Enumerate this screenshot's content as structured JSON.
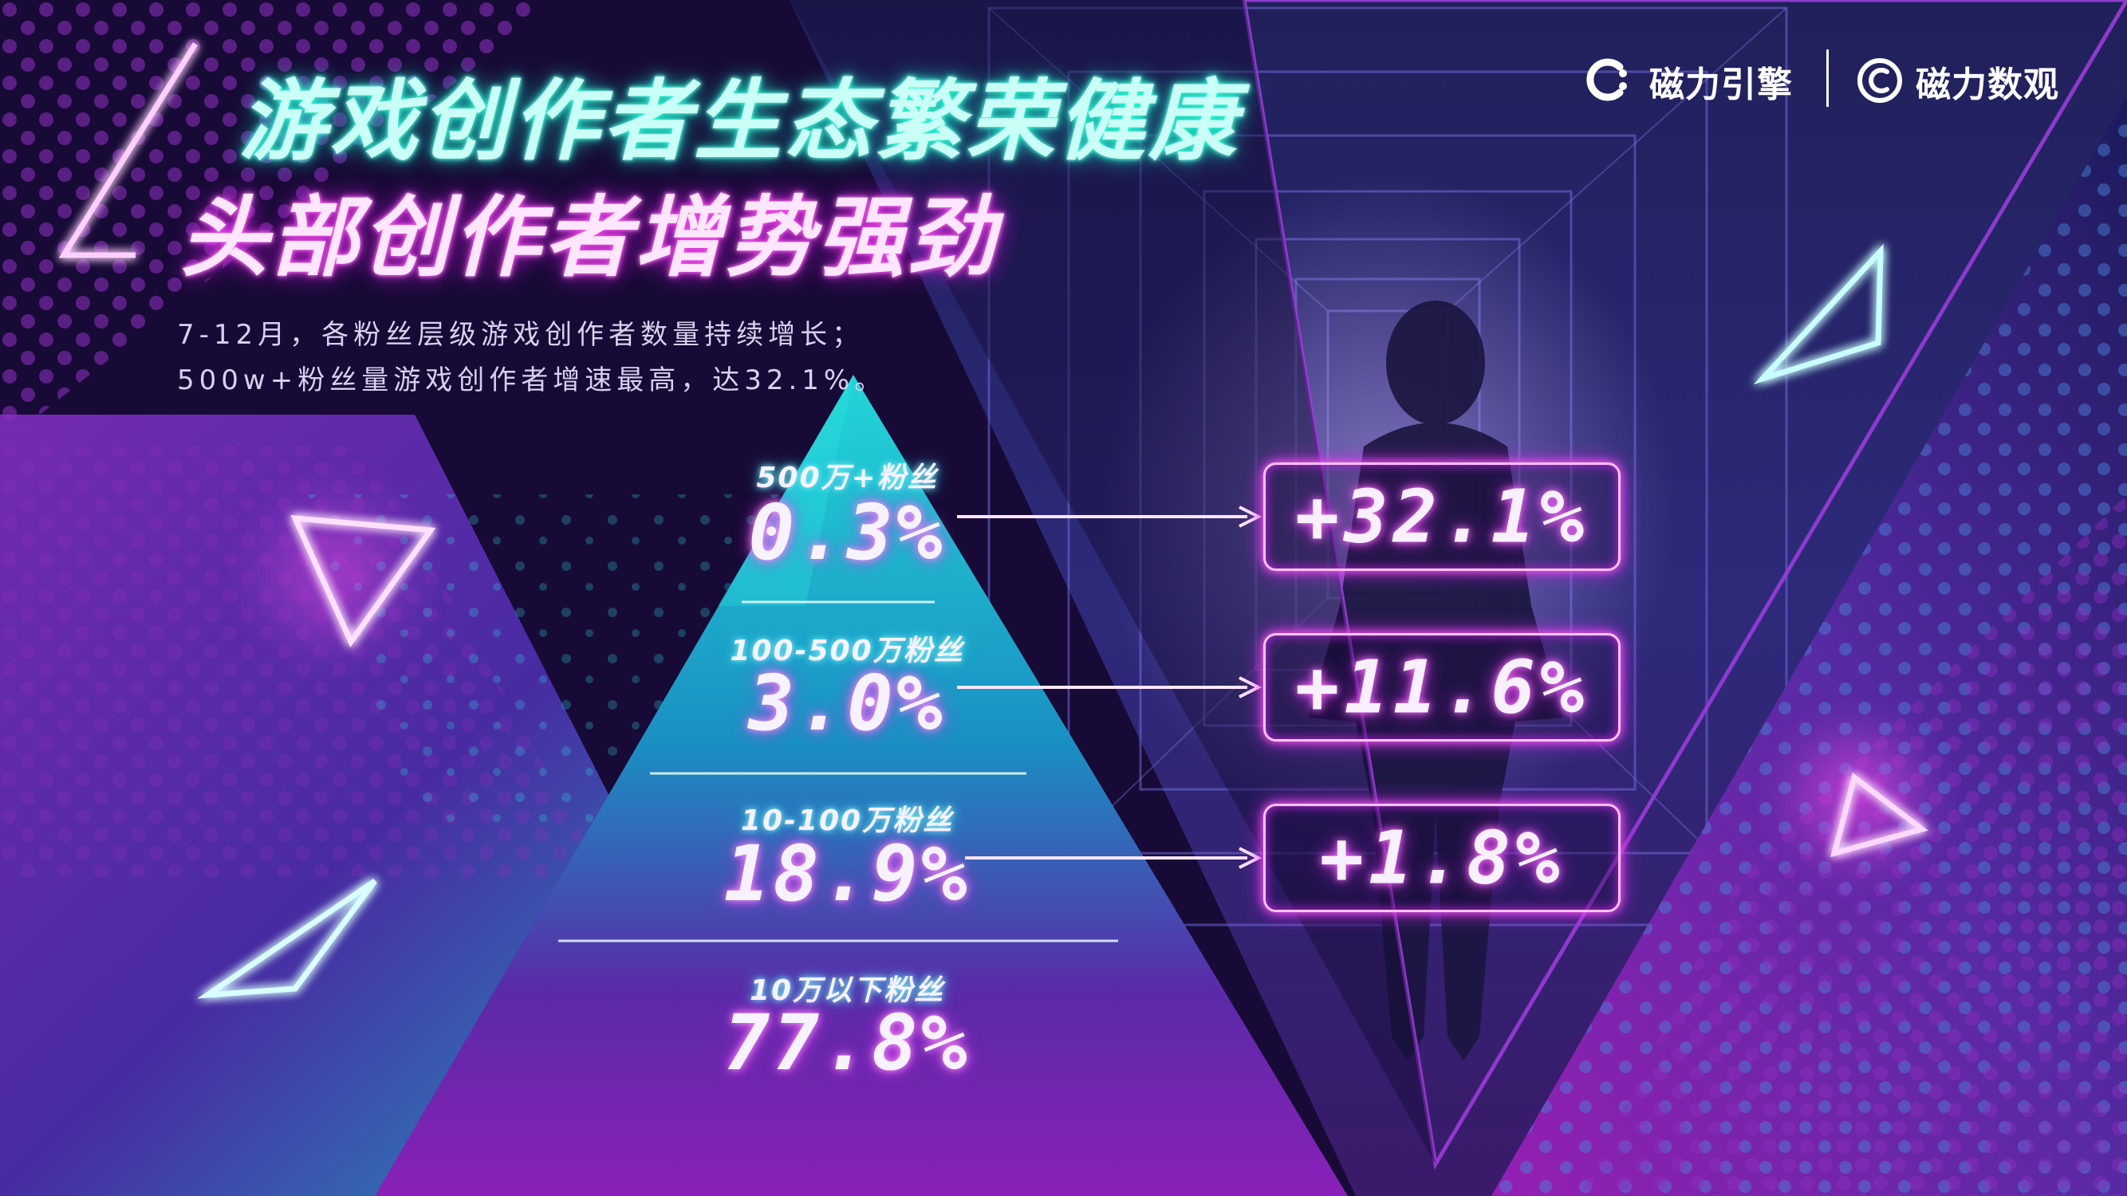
{
  "header": {
    "title_line1": "游戏创作者生态繁荣健康",
    "title_line2": "头部创作者增势强劲",
    "subtitle_line1": "7-12月，各粉丝层级游戏创作者数量持续增长；",
    "subtitle_line2": "500w+粉丝量游戏创作者增速最高，达32.1%。"
  },
  "logos": {
    "brand1": "磁力引擎",
    "brand2": "磁力数观"
  },
  "colors": {
    "bg_dark": "#1a0b3c",
    "purple": "#8e1bb5",
    "cyan": "#19c9cf",
    "neon_pink": "#ff5ff2",
    "neon_cyan": "#29ffd8"
  },
  "chart_data": {
    "type": "pyramid",
    "levels": [
      {
        "label": "500万+粉丝",
        "share": "0.3%",
        "share_value": 0.3,
        "growth": "+32.1%",
        "growth_value": 32.1
      },
      {
        "label": "100-500万粉丝",
        "share": "3.0%",
        "share_value": 3.0,
        "growth": "+11.6%",
        "growth_value": 11.6
      },
      {
        "label": "10-100万粉丝",
        "share": "18.9%",
        "share_value": 18.9,
        "growth": "+1.8%",
        "growth_value": 1.8
      },
      {
        "label": "10万以下粉丝",
        "share": "77.8%",
        "share_value": 77.8,
        "growth": null,
        "growth_value": null
      }
    ]
  }
}
